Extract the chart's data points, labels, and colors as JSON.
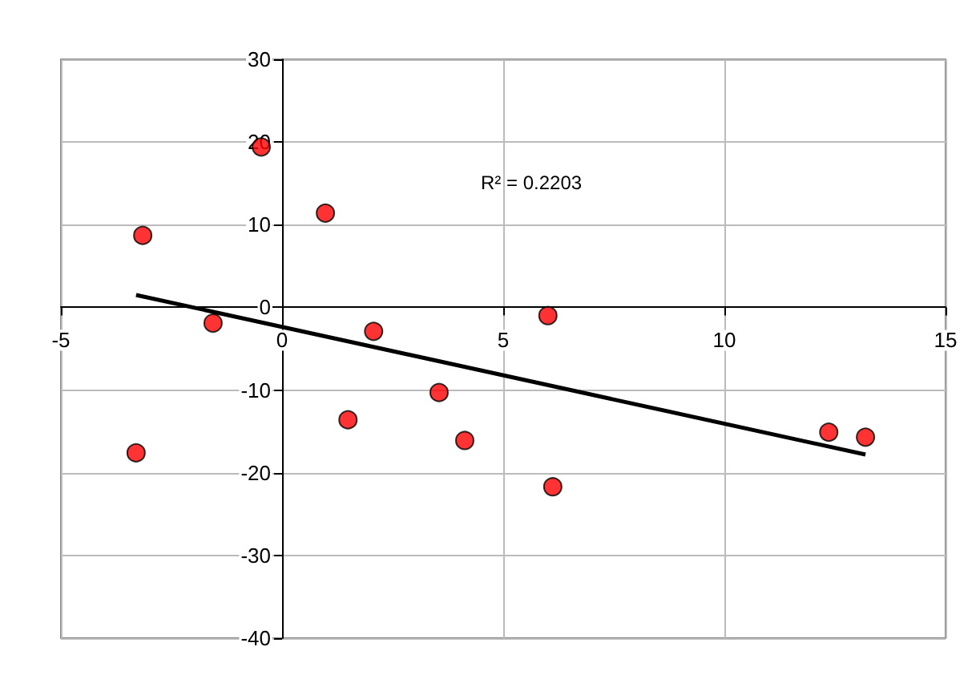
{
  "chart_data": {
    "type": "scatter",
    "xlim": [
      -5,
      15
    ],
    "xticks": [
      -5,
      0,
      5,
      10,
      15
    ],
    "ylim": [
      -40,
      30
    ],
    "yticks": [
      -40,
      -30,
      -20,
      -10,
      0,
      10,
      20,
      30
    ],
    "grid": true,
    "marker": "circle",
    "annotations": [
      "R² = 0.2203"
    ],
    "series": [
      {
        "color": "#ff0000",
        "x": [
          -3.3,
          -3.15,
          -1.56,
          -0.47,
          0.98,
          1.49,
          2.07,
          3.55,
          4.13,
          6.01,
          6.12,
          12.36,
          13.19
        ],
        "values": [
          -17.6,
          8.7,
          -1.9,
          19.4,
          11.4,
          -13.6,
          -2.9,
          -10.3,
          -16.1,
          -1.0,
          -21.7,
          -15.1,
          -15.7
        ]
      },
      {
        "type": "line",
        "color": "#000000",
        "marker": "none",
        "x": [
          -3.3,
          13.19
        ],
        "values": [
          1.5,
          -17.8
        ]
      }
    ]
  }
}
